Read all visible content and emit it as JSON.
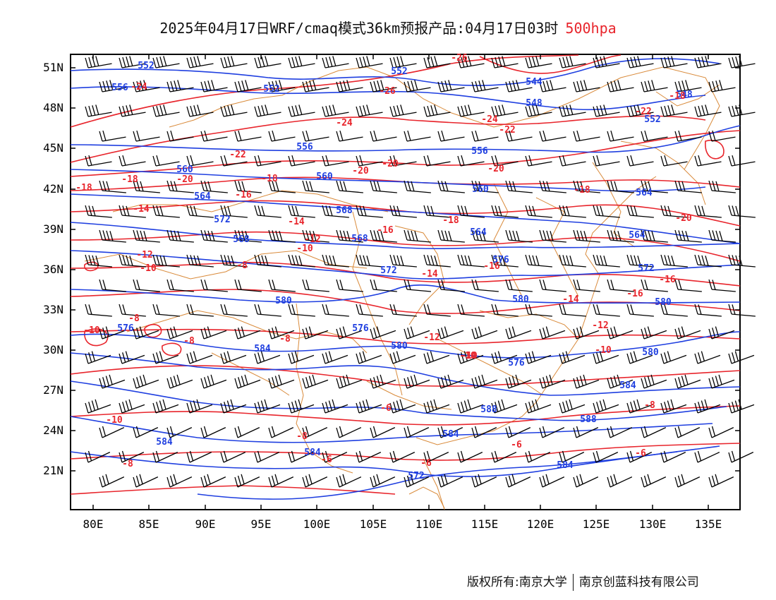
{
  "title": {
    "main": "2025年04月17日WRF/cmaq模式36km预报产品:04月17日03时",
    "level": "500hpa"
  },
  "axes": {
    "lat_labels": [
      "51N",
      "48N",
      "45N",
      "42N",
      "39N",
      "36N",
      "33N",
      "30N",
      "27N",
      "24N",
      "21N"
    ],
    "lon_labels": [
      "80E",
      "85E",
      "90E",
      "95E",
      "100E",
      "105E",
      "110E",
      "115E",
      "120E",
      "125E",
      "130E",
      "135E"
    ]
  },
  "legend_colors": {
    "geopotential_height": "#1f3fe0",
    "temperature": "#e8252c",
    "wind_barbs": "#000000",
    "boundaries": "#d98a3a"
  },
  "height_labels": [
    "552",
    "552",
    "552",
    "556",
    "544",
    "548",
    "548",
    "552",
    "556",
    "556",
    "560",
    "560",
    "560",
    "564",
    "564",
    "568",
    "572",
    "568",
    "564",
    "564",
    "568",
    "572",
    "576",
    "572",
    "580",
    "580",
    "580",
    "576",
    "576",
    "584",
    "580",
    "576",
    "580",
    "584",
    "588",
    "588",
    "584",
    "584",
    "584",
    "584",
    "572"
  ],
  "temperature_labels": [
    "-26",
    "-26",
    "-24",
    "-24",
    "-24",
    "-22",
    "-22",
    "-20",
    "-20",
    "-20",
    "-22",
    "-20",
    "-18",
    "-18",
    "-18",
    "-16",
    "-14",
    "-18",
    "-14",
    "-12",
    "-10",
    "-12",
    "-10",
    "-8",
    "-18",
    "-16",
    "-16",
    "-14",
    "-12",
    "-8",
    "-8",
    "-10",
    "-12",
    "-10",
    "-14",
    "-16",
    "-16",
    "-18",
    "-20",
    "-10",
    "-8",
    "-10",
    "-8",
    "-8",
    "-8",
    "-6",
    "-6",
    "-6",
    "-6",
    "-6",
    "-10"
  ],
  "copyright": {
    "left": "版权所有:南京大学",
    "right": "南京创蓝科技有限公司"
  }
}
